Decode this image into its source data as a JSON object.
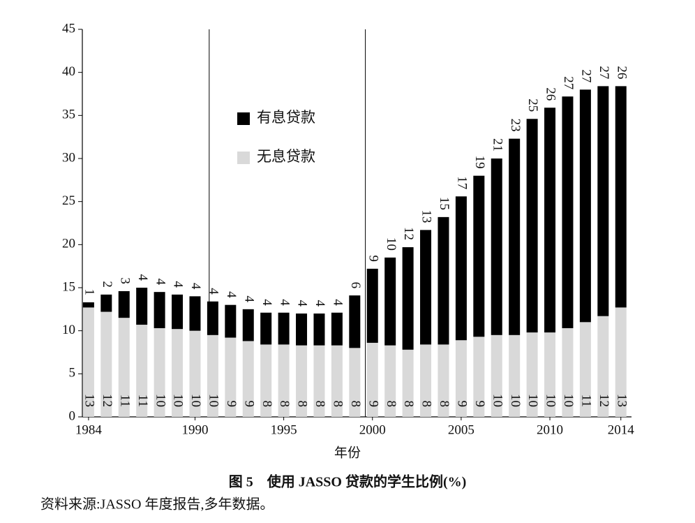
{
  "chart_data": {
    "type": "stacked_bar",
    "x_label": "年份",
    "title": "图 5　使用 JASSO 贷款的学生比例(%)",
    "source": "资料来源:JASSO 年度报告,多年数据。",
    "x": [
      1984,
      1985,
      1986,
      1987,
      1988,
      1989,
      1990,
      1991,
      1992,
      1993,
      1994,
      1995,
      1996,
      1997,
      1998,
      1999,
      2000,
      2001,
      2002,
      2003,
      2004,
      2005,
      2006,
      2007,
      2008,
      2009,
      2010,
      2011,
      2012,
      2013,
      2014
    ],
    "xlim": [
      1983.65,
      2014.6
    ],
    "xticks": [
      1984,
      1990,
      1995,
      2000,
      2005,
      2010,
      2014
    ],
    "ylim": [
      0,
      45
    ],
    "yticks": [
      0,
      5,
      10,
      15,
      20,
      25,
      30,
      35,
      40,
      45
    ],
    "reference_lines": [
      1990.8,
      1999.6
    ],
    "legend": "upper left",
    "series": [
      {
        "name": "无息贷款",
        "color": "#d9d9d9",
        "values": [
          12.7,
          12.2,
          11.5,
          10.7,
          10.3,
          10.2,
          10.0,
          9.5,
          9.2,
          8.8,
          8.4,
          8.4,
          8.3,
          8.3,
          8.3,
          8.0,
          8.6,
          8.3,
          7.8,
          8.4,
          8.4,
          8.9,
          9.3,
          9.5,
          9.5,
          9.8,
          9.8,
          10.3,
          11.0,
          11.7,
          12.7
        ],
        "value_labels": [
          "13",
          "12",
          "11",
          "11",
          "10",
          "10",
          "10",
          "10",
          "9",
          "9",
          "8",
          "8",
          "8",
          "8",
          "8",
          "8",
          "9",
          "8",
          "8",
          "8",
          "8",
          "9",
          "9",
          "10",
          "10",
          "10",
          "10",
          "10",
          "11",
          "12",
          "13"
        ]
      },
      {
        "name": "有息贷款",
        "color": "#000000",
        "values": [
          0.6,
          2.0,
          3.1,
          4.3,
          4.2,
          4.0,
          4.0,
          3.9,
          3.8,
          3.7,
          3.7,
          3.7,
          3.7,
          3.7,
          3.8,
          6.1,
          8.6,
          10.2,
          11.9,
          13.3,
          14.8,
          16.7,
          18.7,
          20.5,
          22.8,
          24.8,
          26.1,
          26.9,
          27.0,
          26.7,
          25.7
        ],
        "value_labels": [
          "1",
          "2",
          "3",
          "4",
          "4",
          "4",
          "4",
          "4",
          "4",
          "4",
          "4",
          "4",
          "4",
          "4",
          "4",
          "6",
          "9",
          "10",
          "12",
          "13",
          "15",
          "17",
          "19",
          "21",
          "23",
          "25",
          "26",
          "27",
          "27",
          "27",
          "26"
        ]
      }
    ]
  }
}
